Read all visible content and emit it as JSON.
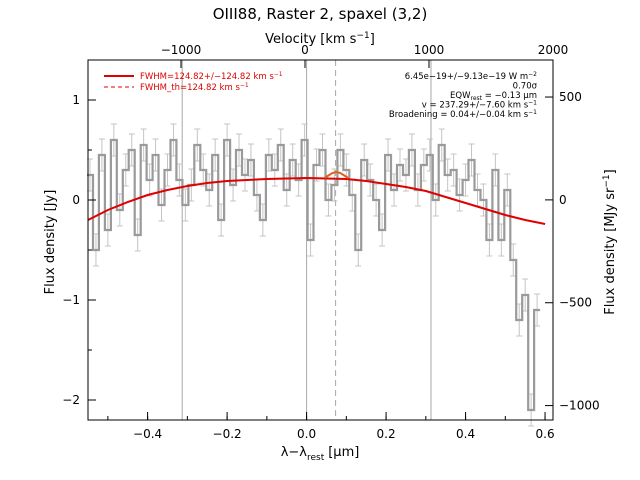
{
  "chart_data": {
    "type": "line",
    "title": "OIII88, Raster 2, spaxel (3,2)",
    "xlabel": "λ−λ",
    "xlabel_sub": "rest",
    "xlabel_unit": "[μm]",
    "ylabel": "Flux density [Jy]",
    "top_xlabel": "Velocity [km s",
    "top_xlabel_sup": "−1",
    "top_xlabel_end": "]",
    "right_ylabel": "Flux density [MJy sr",
    "right_ylabel_sup": "−1",
    "right_ylabel_end": "]",
    "xlim": [
      -0.55,
      0.62
    ],
    "ylim": [
      -2.2,
      1.4
    ],
    "top_xlim": [
      -1750,
      2000
    ],
    "right_ylim": [
      -1070,
      680
    ],
    "x_ticks": [
      "−0.4",
      "−0.2",
      "0.0",
      "0.2",
      "0.4",
      "0.6"
    ],
    "x_tick_values": [
      -0.4,
      -0.2,
      0.0,
      0.2,
      0.4,
      0.6
    ],
    "y_ticks": [
      "1",
      "0",
      "−1",
      "−2"
    ],
    "y_tick_values": [
      1,
      0,
      -1,
      -2
    ],
    "top_ticks": [
      "−1000",
      "0",
      "1000",
      "2000"
    ],
    "top_tick_values": [
      -1000,
      0,
      1000,
      2000
    ],
    "right_ticks": [
      "500",
      "0",
      "−500",
      "−1000"
    ],
    "right_tick_values": [
      500,
      0,
      -500,
      -1000
    ],
    "vlines": [
      -0.313,
      0.0,
      0.313
    ],
    "dashed_vline": 0.073,
    "legend": [
      {
        "label": "FWHM=124.82+/−124.82 km s",
        "sup": "−1",
        "style": "solid",
        "color": "#e00000"
      },
      {
        "label": "FWHM_th=124.82 km s",
        "sup": "−1",
        "style": "dashed",
        "color": "#e00000"
      }
    ],
    "annotations": [
      {
        "text": "6.45e−19+/−9.13e−19 W m",
        "sup": "−2"
      },
      {
        "text": "0.70σ"
      },
      {
        "text": "EQW",
        "sub": "rest",
        "text2": " = −0.13 μm"
      },
      {
        "text": "v = 237.29+/−7.60 km s",
        "sup": "−1"
      },
      {
        "text": "Broadening = 0.04+/−0.04 km s",
        "sup": "−1"
      }
    ],
    "series": [
      {
        "style": "steps",
        "color": "#9a9a9a",
        "x": [
          -0.545,
          -0.53,
          -0.515,
          -0.5,
          -0.485,
          -0.47,
          -0.455,
          -0.44,
          -0.425,
          -0.41,
          -0.395,
          -0.38,
          -0.365,
          -0.35,
          -0.335,
          -0.32,
          -0.305,
          -0.29,
          -0.275,
          -0.26,
          -0.245,
          -0.23,
          -0.215,
          -0.2,
          -0.185,
          -0.17,
          -0.155,
          -0.14,
          -0.125,
          -0.11,
          -0.095,
          -0.08,
          -0.065,
          -0.05,
          -0.035,
          -0.02,
          -0.005,
          0.01,
          0.025,
          0.04,
          0.055,
          0.07,
          0.085,
          0.1,
          0.115,
          0.13,
          0.145,
          0.16,
          0.175,
          0.19,
          0.205,
          0.22,
          0.235,
          0.25,
          0.265,
          0.28,
          0.295,
          0.31,
          0.325,
          0.34,
          0.355,
          0.37,
          0.385,
          0.4,
          0.415,
          0.43,
          0.445,
          0.46,
          0.475,
          0.49,
          0.505,
          0.52,
          0.535,
          0.55,
          0.565,
          0.58
        ],
        "y": [
          0.25,
          -0.5,
          0.45,
          -0.3,
          0.6,
          -0.1,
          0.3,
          0.5,
          -0.35,
          0.55,
          0.2,
          0.45,
          -0.05,
          0.3,
          0.6,
          0.2,
          -0.05,
          0.15,
          0.55,
          0.3,
          0.1,
          0.45,
          -0.2,
          0.6,
          0.15,
          0.5,
          0.25,
          0.4,
          0.05,
          -0.2,
          0.45,
          0.3,
          0.55,
          0.1,
          0.4,
          0.2,
          0.6,
          -0.4,
          0.35,
          0.5,
          0.0,
          0.15,
          0.5,
          0.3,
          0.05,
          -0.5,
          0.4,
          0.2,
          0.0,
          -0.3,
          0.45,
          0.1,
          0.35,
          0.25,
          0.5,
          0.1,
          0.35,
          0.45,
          0.0,
          0.55,
          0.25,
          0.3,
          0.05,
          0.2,
          0.4,
          0.1,
          0.0,
          -0.4,
          0.3,
          -0.4,
          0.1,
          -0.6,
          -1.2,
          -0.95,
          -2.1,
          -1.1
        ],
        "err": 0.16
      },
      {
        "style": "line",
        "color": "#e00000",
        "name": "model",
        "x": [
          -0.55,
          -0.5,
          -0.45,
          -0.4,
          -0.35,
          -0.3,
          -0.25,
          -0.2,
          -0.15,
          -0.1,
          -0.05,
          0.0,
          0.05,
          0.1,
          0.15,
          0.2,
          0.25,
          0.3,
          0.35,
          0.4,
          0.45,
          0.5,
          0.55,
          0.6
        ],
        "y": [
          -0.2,
          -0.1,
          -0.02,
          0.05,
          0.1,
          0.14,
          0.17,
          0.19,
          0.2,
          0.21,
          0.215,
          0.22,
          0.215,
          0.21,
          0.19,
          0.16,
          0.13,
          0.09,
          0.03,
          -0.03,
          -0.09,
          -0.15,
          -0.2,
          -0.24
        ]
      },
      {
        "style": "line",
        "color": "#e06020",
        "name": "component",
        "x": [
          0.045,
          0.055,
          0.065,
          0.075,
          0.085,
          0.095,
          0.105
        ],
        "y": [
          0.22,
          0.245,
          0.27,
          0.28,
          0.27,
          0.245,
          0.22
        ]
      }
    ]
  }
}
